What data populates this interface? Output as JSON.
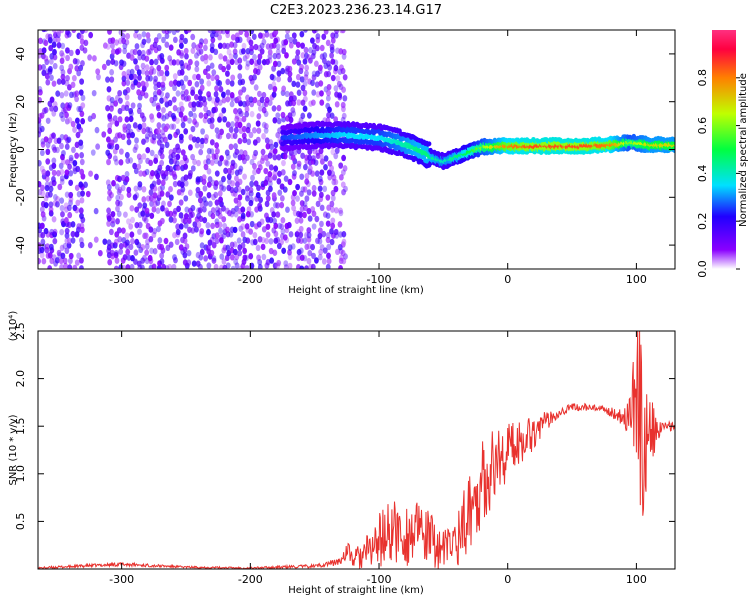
{
  "title": "C2E3.2023.236.23.14.G17",
  "chart_data": [
    {
      "type": "heatmap",
      "name": "spectrogram",
      "xlabel": "Height of straight line (km)",
      "ylabel": "Frequency (Hz)",
      "xlim": [
        -365,
        130
      ],
      "ylim": [
        -50,
        50
      ],
      "x_ticks": [
        -300,
        -200,
        -100,
        0,
        100
      ],
      "y_ticks": [
        -40,
        -20,
        0,
        20,
        40
      ],
      "colorbar": {
        "label": "Normalized spectral amplitude",
        "range": [
          0.0,
          1.0
        ],
        "ticks": [
          0.0,
          0.2,
          0.4,
          0.6,
          0.8
        ],
        "stops": [
          "#ffffff",
          "#8a00ff",
          "#2000ff",
          "#00e0ff",
          "#00ff40",
          "#c0ff00",
          "#ff8000",
          "#ff0040",
          "#ff3080"
        ]
      },
      "noise_region": {
        "x_range": [
          -365,
          -125
        ],
        "amplitude": [
          0.05,
          0.2
        ]
      },
      "signal_track": {
        "x": [
          -175,
          -150,
          -125,
          -100,
          -85,
          -70,
          -60,
          -50,
          -40,
          -30,
          -20,
          -10,
          0,
          20,
          40,
          60,
          80,
          95,
          110,
          130
        ],
        "y": [
          5,
          6,
          6,
          5,
          3,
          0,
          -3,
          -5,
          -3,
          -1,
          1,
          1.5,
          1.5,
          1.5,
          1.5,
          1.5,
          2,
          3,
          2,
          2
        ],
        "amplitude": [
          0.25,
          0.3,
          0.35,
          0.35,
          0.4,
          0.45,
          0.45,
          0.4,
          0.45,
          0.5,
          0.6,
          0.7,
          0.8,
          0.85,
          0.85,
          0.85,
          0.8,
          0.6,
          0.7,
          0.7
        ]
      }
    },
    {
      "type": "line",
      "name": "snr",
      "xlabel": "Height of straight line (km)",
      "ylabel": "SNR (10 * v/v)",
      "ylabel_multiplier": "(x10⁴)",
      "xlim": [
        -365,
        130
      ],
      "ylim": [
        0,
        2.5
      ],
      "x_ticks": [
        -300,
        -200,
        -100,
        0,
        100
      ],
      "y_ticks": [
        0.5,
        1.0,
        1.5,
        2.0,
        2.5
      ],
      "y_tick_labels": [
        "0.5",
        "1.0",
        "1.5",
        "2.0",
        "2.5"
      ],
      "color": "#e8322e",
      "series": [
        {
          "x": [
            -365,
            -300,
            -250,
            -200,
            -150,
            -130,
            -125,
            -120,
            -110,
            -100,
            -90,
            -80,
            -70,
            -60,
            -50,
            -40,
            -30,
            -20,
            -10,
            0,
            10,
            20,
            30,
            40,
            50,
            60,
            70,
            80,
            90,
            95,
            100,
            103,
            105,
            110,
            115,
            120,
            130
          ],
          "y": [
            0.01,
            0.05,
            0.02,
            0.01,
            0.03,
            0.08,
            0.2,
            0.1,
            0.15,
            0.3,
            0.4,
            0.35,
            0.4,
            0.3,
            0.2,
            0.3,
            0.6,
            0.9,
            1.1,
            1.25,
            1.35,
            1.45,
            1.55,
            1.65,
            1.7,
            1.7,
            1.68,
            1.65,
            1.6,
            1.6,
            1.8,
            1.6,
            1.2,
            1.5,
            1.4,
            1.5,
            1.5
          ],
          "noise_amplitude": [
            0.01,
            0.02,
            0.01,
            0.01,
            0.02,
            0.04,
            0.1,
            0.1,
            0.2,
            0.3,
            0.35,
            0.35,
            0.3,
            0.3,
            0.2,
            0.3,
            0.4,
            0.45,
            0.4,
            0.3,
            0.25,
            0.2,
            0.1,
            0.05,
            0.04,
            0.04,
            0.04,
            0.05,
            0.1,
            0.3,
            0.8,
            1.0,
            0.7,
            0.4,
            0.2,
            0.05,
            0.05
          ]
        }
      ]
    }
  ]
}
